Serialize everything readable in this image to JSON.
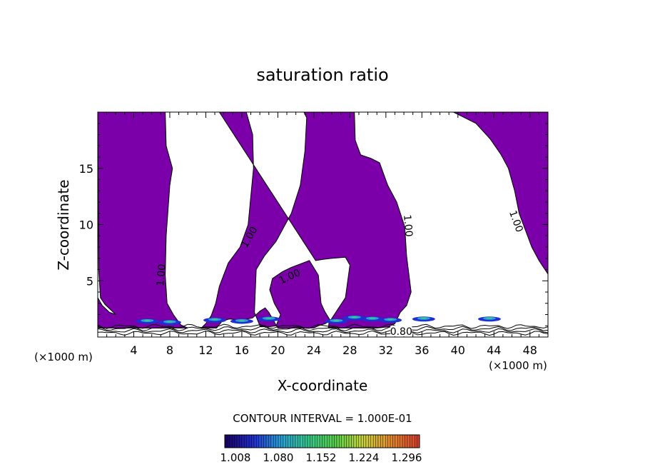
{
  "chart_data": {
    "type": "contour",
    "title": "saturation ratio",
    "xlabel": "X-coordinate",
    "ylabel": "Z-coordinate",
    "x_units_left": "(×1000 m)",
    "x_units_right": "(×1000 m)",
    "xlim": [
      0,
      50
    ],
    "ylim": [
      0,
      20
    ],
    "x_ticks": [
      4,
      8,
      12,
      16,
      20,
      24,
      28,
      32,
      36,
      40,
      44,
      48
    ],
    "y_ticks": [
      5,
      10,
      15
    ],
    "grid": false,
    "fill_color_above_1": "#7b00a9",
    "contour_labels": [
      {
        "text": "1.00",
        "x": 7.0,
        "y": 5.5,
        "angle": -85
      },
      {
        "text": "1.00",
        "x": 16.8,
        "y": 8.9,
        "angle": -60
      },
      {
        "text": "1.00",
        "x": 21.3,
        "y": 5.4,
        "angle": -25
      },
      {
        "text": "1.00",
        "x": 34.5,
        "y": 9.9,
        "angle": 85
      },
      {
        "text": "1.00",
        "x": 46.5,
        "y": 10.3,
        "angle": 70
      },
      {
        "text": "0.80",
        "x": 33.7,
        "y": 0.5,
        "angle": 0
      }
    ],
    "contour_interval_text": "CONTOUR INTERVAL = 1.000E-01",
    "colorbar": {
      "labels": [
        "1.008",
        "1.080",
        "1.152",
        "1.224",
        "1.296"
      ],
      "colors": [
        "#1a0066",
        "#1f2fd0",
        "#2aa0d8",
        "#35c98a",
        "#58d04a",
        "#c8d23b",
        "#e58a2c",
        "#d8402a"
      ]
    },
    "regions_above_1": [
      [
        [
          0,
          20
        ],
        [
          7.5,
          20
        ],
        [
          7.6,
          17
        ],
        [
          8.3,
          15
        ],
        [
          8.0,
          13.5
        ],
        [
          7.6,
          9
        ],
        [
          7.5,
          5.5
        ],
        [
          7.7,
          3
        ],
        [
          8.4,
          2
        ],
        [
          9.2,
          1.1
        ],
        [
          10.0,
          0.8
        ],
        [
          0,
          0.8
        ],
        [
          0,
          3.5
        ],
        [
          0.5,
          2.8
        ],
        [
          1.3,
          2.2
        ],
        [
          2,
          2.0
        ],
        [
          0.8,
          2.9
        ],
        [
          0.3,
          3.5
        ],
        [
          0.1,
          6
        ]
      ],
      [
        [
          13.5,
          20
        ],
        [
          16.5,
          20
        ],
        [
          17.2,
          18
        ],
        [
          17.3,
          15
        ],
        [
          17.0,
          12.5
        ],
        [
          16.7,
          10
        ],
        [
          15.8,
          8
        ],
        [
          14.5,
          6.6
        ],
        [
          13.5,
          4.5
        ],
        [
          13.1,
          3
        ],
        [
          12.6,
          1.9
        ],
        [
          12.0,
          1.2
        ],
        [
          11.5,
          0.8
        ],
        [
          13.2,
          0.8
        ],
        [
          13.8,
          1.4
        ],
        [
          14.6,
          1.6
        ],
        [
          16.0,
          1.5
        ],
        [
          17.2,
          1.7
        ],
        [
          18.0,
          2.3
        ],
        [
          18.6,
          2.6
        ],
        [
          19.0,
          2.2
        ],
        [
          19.5,
          1.5
        ],
        [
          20.0,
          0.8
        ],
        [
          24.0,
          0.8
        ],
        [
          24.5,
          1.0
        ],
        [
          25.3,
          1.2
        ],
        [
          25.8,
          1.5
        ],
        [
          25.2,
          2.3
        ],
        [
          24.8,
          3.0
        ],
        [
          24.5,
          5.5
        ],
        [
          23.5,
          6.8
        ],
        [
          21.5,
          6.2
        ],
        [
          20.5,
          5.8
        ],
        [
          19.4,
          5.2
        ],
        [
          19.1,
          4.2
        ],
        [
          19.6,
          3.0
        ],
        [
          20.3,
          2.0
        ],
        [
          19.8,
          1.0
        ],
        [
          19.0,
          0.9
        ],
        [
          18.0,
          1.0
        ],
        [
          17.4,
          2.2
        ],
        [
          17.6,
          6.0
        ],
        [
          18.5,
          7.2
        ],
        [
          19.8,
          8.5
        ],
        [
          21.5,
          11.0
        ],
        [
          22.5,
          13.5
        ],
        [
          23.0,
          16.5
        ],
        [
          23.2,
          19.5
        ],
        [
          22.9,
          20
        ],
        [
          28.5,
          20
        ],
        [
          28.6,
          17.5
        ],
        [
          29.2,
          16.2
        ],
        [
          30.3,
          15.9
        ],
        [
          31.3,
          15.5
        ],
        [
          32.2,
          13.5
        ],
        [
          33.2,
          12.0
        ],
        [
          34.1,
          9.8
        ],
        [
          34.3,
          7.2
        ],
        [
          34.8,
          4.0
        ],
        [
          34.3,
          2.8
        ],
        [
          33.6,
          2.2
        ],
        [
          33.0,
          1.2
        ],
        [
          32.3,
          0.9
        ],
        [
          31.0,
          0.8
        ],
        [
          25.6,
          0.8
        ],
        [
          25.7,
          1.3
        ],
        [
          27.5,
          3.5
        ],
        [
          28.0,
          6.4
        ],
        [
          27.5,
          7.1
        ],
        [
          26.0,
          7.0
        ],
        [
          25.0,
          6.9
        ],
        [
          24.2,
          6.8
        ]
      ],
      [
        [
          39.5,
          20
        ],
        [
          50,
          20
        ],
        [
          50,
          5.6
        ],
        [
          49.0,
          6.8
        ],
        [
          48.2,
          8.0
        ],
        [
          46.8,
          11.0
        ],
        [
          46.3,
          13.0
        ],
        [
          45.6,
          15.0
        ],
        [
          44.8,
          16.2
        ],
        [
          43.6,
          17.6
        ],
        [
          42.0,
          19.0
        ],
        [
          40.5,
          19.6
        ]
      ]
    ]
  }
}
